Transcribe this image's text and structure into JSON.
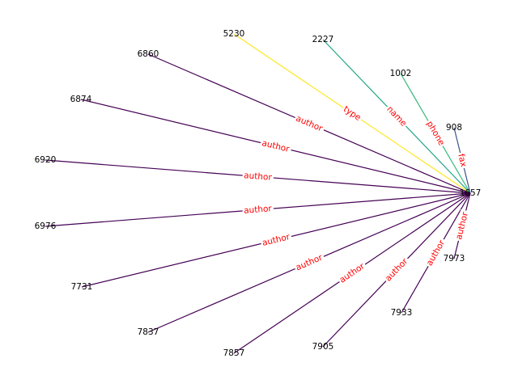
{
  "graph": {
    "hub": "1657",
    "edges": [
      {
        "target": "5230",
        "relation": "type",
        "color": "#fde725"
      },
      {
        "target": "2227",
        "relation": "name",
        "color": "#21a585"
      },
      {
        "target": "1002",
        "relation": "phone",
        "color": "#35b779"
      },
      {
        "target": "908",
        "relation": "fax",
        "color": "#3b528b"
      },
      {
        "target": "6860",
        "relation": "author",
        "color": "#440154"
      },
      {
        "target": "6874",
        "relation": "author",
        "color": "#440154"
      },
      {
        "target": "6920",
        "relation": "author",
        "color": "#440154"
      },
      {
        "target": "6976",
        "relation": "author",
        "color": "#440154"
      },
      {
        "target": "7731",
        "relation": "author",
        "color": "#440154"
      },
      {
        "target": "7837",
        "relation": "author",
        "color": "#440154"
      },
      {
        "target": "7857",
        "relation": "author",
        "color": "#440154"
      },
      {
        "target": "7905",
        "relation": "author",
        "color": "#440154"
      },
      {
        "target": "7933",
        "relation": "author",
        "color": "#440154"
      },
      {
        "target": "7973",
        "relation": "author",
        "color": "#440154"
      }
    ]
  }
}
